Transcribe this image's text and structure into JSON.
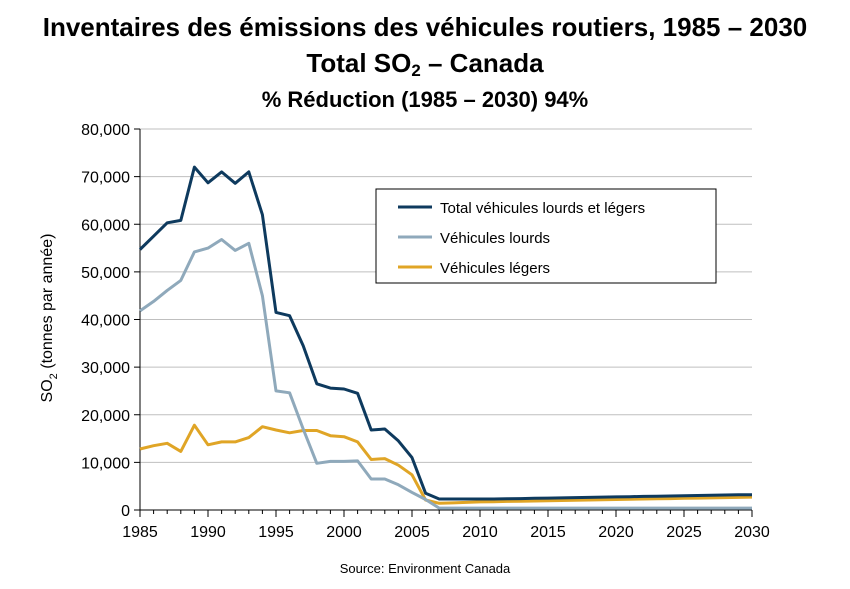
{
  "chart_data": {
    "type": "line",
    "title": {
      "line1": "Inventaires des émissions des véhicules routiers, 1985 – 2030",
      "line2_main": "Total SO",
      "line2_sub": "2",
      "line2_rest": " – Canada",
      "line3": "% Réduction (1985 – 2030) 94%"
    },
    "ylabel": {
      "main": "SO",
      "sub": "2",
      "rest": " (tonnes par année)"
    },
    "xlim": [
      1985,
      2030
    ],
    "ylim": [
      0,
      80000
    ],
    "xticks": [
      1985,
      1990,
      1995,
      2000,
      2005,
      2010,
      2015,
      2020,
      2025,
      2030
    ],
    "yticks": [
      0,
      10000,
      20000,
      30000,
      40000,
      50000,
      60000,
      70000,
      80000
    ],
    "ytick_labels": [
      "0",
      "10,000",
      "20,000",
      "30,000",
      "40,000",
      "50,000",
      "60,000",
      "70,000",
      "80,000"
    ],
    "grid": "horizontal",
    "legend_position": "top-right",
    "x": [
      1985,
      1986,
      1987,
      1988,
      1989,
      1990,
      1991,
      1992,
      1993,
      1994,
      1995,
      1996,
      1997,
      1998,
      1999,
      2000,
      2001,
      2002,
      2003,
      2004,
      2005,
      2006,
      2007,
      2008,
      2009,
      2010,
      2011,
      2012,
      2013,
      2014,
      2015,
      2016,
      2017,
      2018,
      2019,
      2020,
      2021,
      2022,
      2023,
      2024,
      2025,
      2026,
      2027,
      2028,
      2029,
      2030
    ],
    "series": [
      {
        "name": "Total véhicules lourds et légers",
        "color": "#0e3a5e",
        "values": [
          54700,
          57500,
          60300,
          60800,
          72000,
          68700,
          71000,
          68600,
          71000,
          62000,
          41500,
          40800,
          34500,
          26500,
          25600,
          25400,
          24500,
          16800,
          17000,
          14500,
          11000,
          3500,
          2300,
          2300,
          2300,
          2300,
          2300,
          2350,
          2400,
          2450,
          2500,
          2550,
          2600,
          2650,
          2700,
          2750,
          2800,
          2850,
          2900,
          2950,
          3000,
          3050,
          3100,
          3150,
          3200,
          3200
        ]
      },
      {
        "name": "Véhicules lourds",
        "color": "#8fa9bb",
        "values": [
          41800,
          43800,
          46100,
          48200,
          54200,
          55000,
          56800,
          54500,
          56000,
          45000,
          25000,
          24600,
          17000,
          9800,
          10200,
          10200,
          10300,
          6500,
          6500,
          5300,
          3700,
          2200,
          400,
          400,
          400,
          400,
          400,
          400,
          400,
          400,
          400,
          400,
          400,
          400,
          400,
          400,
          400,
          400,
          400,
          400,
          400,
          400,
          400,
          400,
          400,
          400
        ]
      },
      {
        "name": "Véhicules légers",
        "color": "#e0a526",
        "values": [
          12800,
          13500,
          14000,
          12300,
          17800,
          13700,
          14300,
          14300,
          15200,
          17500,
          16800,
          16200,
          16700,
          16700,
          15600,
          15400,
          14300,
          10600,
          10800,
          9400,
          7400,
          2100,
          1400,
          1500,
          1600,
          1700,
          1750,
          1800,
          1850,
          1900,
          1950,
          2000,
          2050,
          2100,
          2150,
          2200,
          2250,
          2300,
          2350,
          2400,
          2450,
          2500,
          2550,
          2600,
          2650,
          2700
        ]
      }
    ],
    "source": "Source: Environment Canada"
  }
}
